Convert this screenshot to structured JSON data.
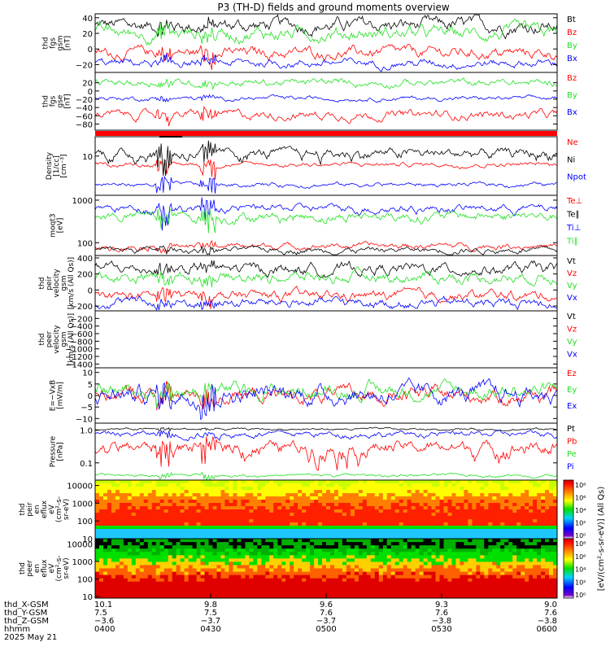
{
  "title": "P3 (TH-D) fields and ground moments overview",
  "colors": {
    "black": "#000000",
    "red": "#ff0000",
    "green": "#22e022",
    "blue": "#0000ff"
  },
  "chart_data": {
    "type": "line",
    "x_time_range": [
      "2025-05-21 04:00",
      "2025-05-21 06:00"
    ],
    "panels": [
      {
        "ylabel": [
          "thd",
          "fgs",
          "gsm",
          "[nT]"
        ],
        "ylim": [
          -30,
          45
        ],
        "ticks": [
          40,
          20,
          0,
          -20
        ],
        "tick_labels": [
          "40",
          "20",
          "0",
          "−20"
        ],
        "series": [
          {
            "name": "Bt",
            "color": "#000000",
            "mean": 30,
            "noise": 5,
            "spike": 8
          },
          {
            "name": "Bz",
            "color": "#ff0000",
            "mean": -5,
            "noise": 4,
            "spike": 12
          },
          {
            "name": "By",
            "color": "#22e022",
            "mean": 20,
            "noise": 5,
            "spike": 10
          },
          {
            "name": "Bx",
            "color": "#0000ff",
            "mean": -18,
            "noise": 3,
            "spike": 6
          }
        ]
      },
      {
        "ylabel": [
          "thd",
          "fgs",
          "gse",
          "[nT]"
        ],
        "ylim": [
          -95,
          45
        ],
        "ticks": [
          20,
          0,
          -20,
          -40,
          -60,
          -80
        ],
        "tick_labels": [
          "20",
          "0",
          "−20",
          "−40",
          "−60",
          "−80"
        ],
        "series": [
          {
            "name": "Bz",
            "color": "#ff0000",
            "mean": -58,
            "noise": 6,
            "spike": 15
          },
          {
            "name": "By",
            "color": "#22e022",
            "mean": 20,
            "noise": 5,
            "spike": 10
          },
          {
            "name": "Bx",
            "color": "#0000ff",
            "mean": -18,
            "noise": 3,
            "spike": 6
          }
        ]
      },
      {
        "ylabel": [
          "Density",
          "[1/cc]",
          "[cm⁻³]"
        ],
        "ylim": [
          0.6,
          40
        ],
        "log": true,
        "ticks": [
          10
        ],
        "tick_labels": [
          "10"
        ],
        "series": [
          {
            "name": "Ne",
            "color": "#ff0000",
            "mean": 5.5,
            "noise": 0.06,
            "spike": 0.3
          },
          {
            "name": "Ni",
            "color": "#000000",
            "mean": 12,
            "noise": 0.15,
            "spike": 0.5
          },
          {
            "name": "Npot",
            "color": "#0000ff",
            "mean": 1.3,
            "noise": 0.06,
            "spike": 0.3
          }
        ]
      },
      {
        "ylabel": [
          "moqt3",
          "[eV]"
        ],
        "ylim": [
          50,
          1300
        ],
        "log": true,
        "ticks": [
          1000,
          100
        ],
        "tick_labels": [
          "1000",
          "100"
        ],
        "series": [
          {
            "name": "Te⊥",
            "color": "#ff0000",
            "mean": 85,
            "noise": 0.06,
            "spike": 0.1
          },
          {
            "name": "Te∥",
            "color": "#000000",
            "mean": 68,
            "noise": 0.06,
            "spike": 0.1
          },
          {
            "name": "Ti⊥",
            "color": "#0000ff",
            "mean": 650,
            "noise": 0.08,
            "spike": 0.3
          },
          {
            "name": "Ti∥",
            "color": "#22e022",
            "mean": 420,
            "noise": 0.1,
            "spike": 0.3
          }
        ]
      },
      {
        "ylabel": [
          "thd",
          "peir",
          "velocity",
          "gsm",
          "[km/s (All Qs)]"
        ],
        "ylim": [
          -260,
          430
        ],
        "ticks": [
          400,
          200,
          0,
          -200
        ],
        "tick_labels": [
          "400",
          "200",
          "0",
          "−200"
        ],
        "series": [
          {
            "name": "Vt",
            "color": "#000000",
            "mean": 260,
            "noise": 40,
            "spike": 80
          },
          {
            "name": "Vz",
            "color": "#ff0000",
            "mean": -70,
            "noise": 35,
            "spike": 100
          },
          {
            "name": "Vy",
            "color": "#22e022",
            "mean": 160,
            "noise": 40,
            "spike": 80
          },
          {
            "name": "Vx",
            "color": "#0000ff",
            "mean": -160,
            "noise": 35,
            "spike": 60
          }
        ]
      },
      {
        "ylabel": [
          "thd",
          "peer",
          "velocity",
          "gsm",
          "[km/s (All Qs)]"
        ],
        "ylim": [
          -1500,
          0
        ],
        "ticks": [
          -200,
          -400,
          -600,
          -800,
          -1000,
          -1200,
          -1400
        ],
        "tick_labels": [
          "−200",
          "−400",
          "−600",
          "−800",
          "−1000",
          "−1200",
          "−1400"
        ],
        "series": [
          {
            "name": "Vt",
            "color": "#000000",
            "empty": true
          },
          {
            "name": "Vz",
            "color": "#ff0000",
            "empty": true
          },
          {
            "name": "Vy",
            "color": "#22e022",
            "empty": true
          },
          {
            "name": "Vx",
            "color": "#0000ff",
            "empty": true
          }
        ]
      },
      {
        "ylabel": [
          "E=−VxB",
          "[mV/m]"
        ],
        "ylim": [
          -12,
          12
        ],
        "ticks": [
          10,
          5,
          0,
          -5,
          -10
        ],
        "tick_labels": [
          "10",
          "5",
          "0",
          "−5",
          "−10"
        ],
        "series": [
          {
            "name": "Ez",
            "color": "#ff0000",
            "mean": 0,
            "noise": 1.8,
            "spike": 5
          },
          {
            "name": "Ey",
            "color": "#22e022",
            "mean": 2,
            "noise": 1.8,
            "spike": 5
          },
          {
            "name": "Ex",
            "color": "#0000ff",
            "mean": 0.5,
            "noise": 2.2,
            "spike": 6
          }
        ]
      },
      {
        "ylabel": [
          "Pressure",
          "[nPa]"
        ],
        "ylim": [
          0.03,
          1.6
        ],
        "log": true,
        "ticks": [
          1.0,
          0.1
        ],
        "tick_labels": [
          "1.0",
          "0.1"
        ],
        "series": [
          {
            "name": "Pt",
            "color": "#000000",
            "mean": 1.05,
            "noise": 0.03,
            "spike": 0.05
          },
          {
            "name": "Pb",
            "color": "#ff0000",
            "mean": 0.3,
            "noise": 0.18,
            "spike": 0.4
          },
          {
            "name": "Pe",
            "color": "#22e022",
            "mean": 0.042,
            "noise": 0.04,
            "spike": 0.1
          },
          {
            "name": "Pi",
            "color": "#0000ff",
            "mean": 0.75,
            "noise": 0.08,
            "spike": 0.15
          }
        ]
      }
    ],
    "spectrograms": [
      {
        "ylabel": [
          "thd",
          "peir",
          "en",
          "eflux",
          "eV",
          "(cm²-s-",
          "sr-eV)"
        ],
        "ylim": [
          10,
          20000
        ],
        "log": true,
        "ticks": [
          10000,
          1000,
          100,
          10
        ],
        "tick_labels": [
          "10000",
          "1000",
          "100",
          "10"
        ]
      },
      {
        "ylabel": [
          "thd",
          "peer",
          "en",
          "eflux",
          "eV",
          "(cm²-s-",
          "sr-eV)"
        ],
        "ylim": [
          8,
          20000
        ],
        "log": true,
        "ticks": [
          10000,
          1000,
          100,
          10
        ],
        "tick_labels": [
          "10000",
          "1000",
          "100",
          "10"
        ]
      }
    ],
    "colorbar": {
      "label": "[eV/(cm²-s-sr-eV)] (All Qs)",
      "ticks_upper": [
        "10⁸",
        "10⁶",
        "10⁴",
        "10²",
        "10⁰"
      ],
      "ticks_lower": [
        "10⁸",
        "10⁶",
        "10⁴",
        "10²",
        "10⁰"
      ]
    },
    "x_axis": {
      "rows": [
        {
          "label": "thd_X-GSM",
          "values": [
            "10.1",
            "9.8",
            "9.6",
            "9.3",
            "9.0"
          ]
        },
        {
          "label": "thd_Y-GSM",
          "values": [
            "7.5",
            "7.5",
            "7.6",
            "7.6",
            "7.6"
          ]
        },
        {
          "label": "thd_Z-GSM",
          "values": [
            "−3.6",
            "−3.7",
            "−3.7",
            "−3.8",
            "−3.8"
          ]
        },
        {
          "label": "hhmm",
          "values": [
            "0400",
            "0430",
            "0500",
            "0530",
            "0600"
          ]
        }
      ],
      "date": "2025 May 21"
    }
  }
}
